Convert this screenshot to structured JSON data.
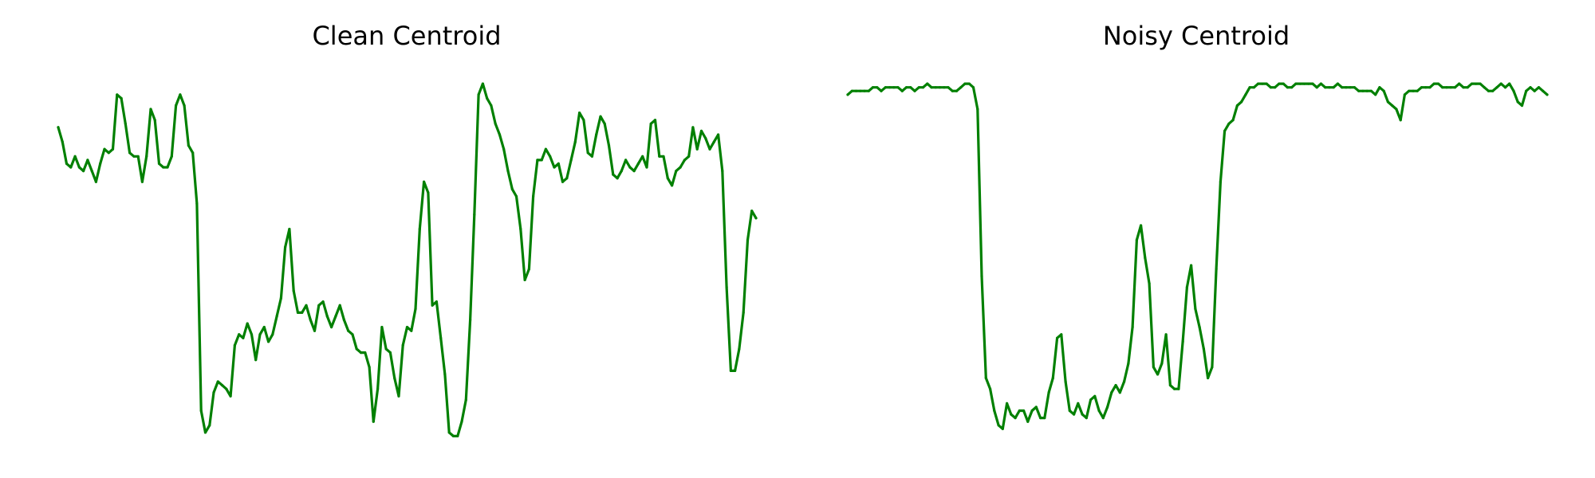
{
  "figure": {
    "background": "#ffffff",
    "line_color": "#008000"
  },
  "chart_data": [
    {
      "type": "line",
      "title": "Clean Centroid",
      "xlabel": "",
      "ylabel": "",
      "axes": "off",
      "grid": false,
      "legend": "none",
      "ylim": [
        0,
        1
      ],
      "series": [
        {
          "values": [
            0.86,
            0.82,
            0.76,
            0.75,
            0.78,
            0.75,
            0.74,
            0.77,
            0.74,
            0.71,
            0.76,
            0.8,
            0.79,
            0.8,
            0.95,
            0.94,
            0.87,
            0.79,
            0.78,
            0.78,
            0.71,
            0.78,
            0.91,
            0.88,
            0.76,
            0.75,
            0.75,
            0.78,
            0.92,
            0.95,
            0.92,
            0.81,
            0.79,
            0.65,
            0.08,
            0.02,
            0.04,
            0.13,
            0.16,
            0.15,
            0.14,
            0.12,
            0.26,
            0.29,
            0.28,
            0.32,
            0.29,
            0.22,
            0.29,
            0.31,
            0.27,
            0.29,
            0.34,
            0.39,
            0.53,
            0.58,
            0.41,
            0.35,
            0.35,
            0.37,
            0.33,
            0.3,
            0.37,
            0.38,
            0.34,
            0.31,
            0.34,
            0.37,
            0.33,
            0.3,
            0.29,
            0.25,
            0.24,
            0.24,
            0.2,
            0.05,
            0.14,
            0.31,
            0.25,
            0.24,
            0.17,
            0.12,
            0.26,
            0.31,
            0.3,
            0.36,
            0.58,
            0.71,
            0.68,
            0.37,
            0.38,
            0.28,
            0.18,
            0.02,
            0.01,
            0.01,
            0.05,
            0.11,
            0.33,
            0.62,
            0.95,
            0.98,
            0.94,
            0.92,
            0.87,
            0.84,
            0.8,
            0.74,
            0.69,
            0.67,
            0.58,
            0.44,
            0.47,
            0.67,
            0.77,
            0.77,
            0.8,
            0.78,
            0.75,
            0.76,
            0.71,
            0.72,
            0.77,
            0.82,
            0.9,
            0.88,
            0.79,
            0.78,
            0.84,
            0.89,
            0.87,
            0.81,
            0.73,
            0.72,
            0.74,
            0.77,
            0.75,
            0.74,
            0.76,
            0.78,
            0.75,
            0.87,
            0.88,
            0.78,
            0.78,
            0.72,
            0.7,
            0.74,
            0.75,
            0.77,
            0.78,
            0.86,
            0.8,
            0.85,
            0.83,
            0.8,
            0.82,
            0.84,
            0.74,
            0.42,
            0.19,
            0.19,
            0.25,
            0.35,
            0.55,
            0.63,
            0.61
          ]
        }
      ]
    },
    {
      "type": "line",
      "title": "Noisy Centroid",
      "xlabel": "",
      "ylabel": "",
      "axes": "off",
      "grid": false,
      "legend": "none",
      "ylim": [
        0,
        1
      ],
      "series": [
        {
          "values": [
            0.95,
            0.96,
            0.96,
            0.96,
            0.96,
            0.96,
            0.97,
            0.97,
            0.96,
            0.97,
            0.97,
            0.97,
            0.97,
            0.96,
            0.97,
            0.97,
            0.96,
            0.97,
            0.97,
            0.98,
            0.97,
            0.97,
            0.97,
            0.97,
            0.97,
            0.96,
            0.96,
            0.97,
            0.98,
            0.98,
            0.97,
            0.91,
            0.45,
            0.17,
            0.14,
            0.08,
            0.04,
            0.03,
            0.1,
            0.07,
            0.06,
            0.08,
            0.08,
            0.05,
            0.08,
            0.09,
            0.06,
            0.06,
            0.13,
            0.17,
            0.28,
            0.29,
            0.16,
            0.08,
            0.07,
            0.1,
            0.07,
            0.06,
            0.11,
            0.12,
            0.08,
            0.06,
            0.09,
            0.13,
            0.15,
            0.13,
            0.16,
            0.21,
            0.31,
            0.55,
            0.59,
            0.5,
            0.43,
            0.2,
            0.18,
            0.21,
            0.29,
            0.15,
            0.14,
            0.14,
            0.27,
            0.42,
            0.48,
            0.36,
            0.31,
            0.25,
            0.17,
            0.2,
            0.47,
            0.71,
            0.85,
            0.87,
            0.88,
            0.92,
            0.93,
            0.95,
            0.97,
            0.97,
            0.98,
            0.98,
            0.98,
            0.97,
            0.97,
            0.98,
            0.98,
            0.97,
            0.97,
            0.98,
            0.98,
            0.98,
            0.98,
            0.98,
            0.97,
            0.98,
            0.97,
            0.97,
            0.97,
            0.98,
            0.97,
            0.97,
            0.97,
            0.97,
            0.96,
            0.96,
            0.96,
            0.96,
            0.95,
            0.97,
            0.96,
            0.93,
            0.92,
            0.91,
            0.88,
            0.95,
            0.96,
            0.96,
            0.96,
            0.97,
            0.97,
            0.97,
            0.98,
            0.98,
            0.97,
            0.97,
            0.97,
            0.97,
            0.98,
            0.97,
            0.97,
            0.98,
            0.98,
            0.98,
            0.97,
            0.96,
            0.96,
            0.97,
            0.98,
            0.97,
            0.98,
            0.96,
            0.93,
            0.92,
            0.96,
            0.97,
            0.96,
            0.97,
            0.96,
            0.95
          ]
        }
      ]
    }
  ]
}
